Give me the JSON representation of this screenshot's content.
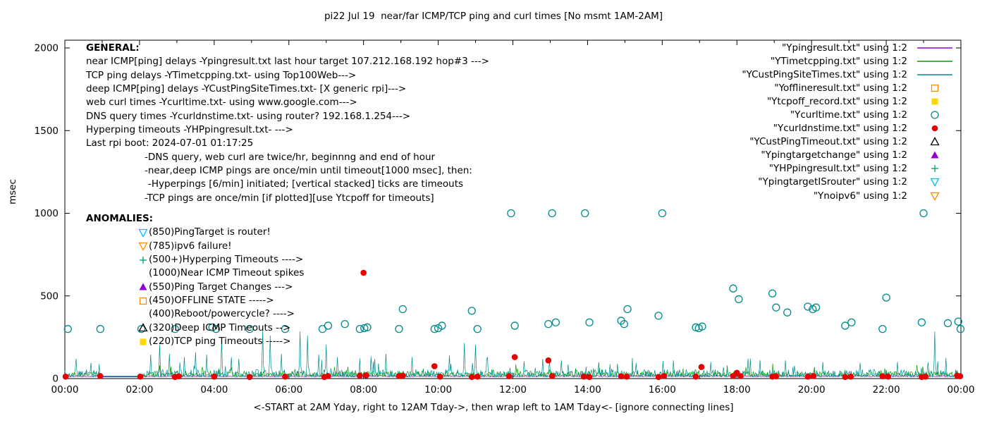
{
  "title": "pi22 Jul 19  near/far ICMP/TCP ping and curl times [No msmt 1AM-2AM]",
  "axes": {
    "ylabel": "msec",
    "xlabel": "<-START at 2AM Yday, right to 12AM Tday->, then wrap left to 1AM Tday<- [ignore connecting lines]",
    "y_ticks": [
      {
        "value": 0,
        "label": "0"
      },
      {
        "value": 500,
        "label": "500"
      },
      {
        "value": 1000,
        "label": "1000"
      },
      {
        "value": 1500,
        "label": "1500"
      },
      {
        "value": 2000,
        "label": "2000"
      }
    ],
    "x_ticks": [
      {
        "hour": 0,
        "label": "00:00"
      },
      {
        "hour": 2,
        "label": "02:00"
      },
      {
        "hour": 4,
        "label": "04:00"
      },
      {
        "hour": 6,
        "label": "06:00"
      },
      {
        "hour": 8,
        "label": "08:00"
      },
      {
        "hour": 10,
        "label": "10:00"
      },
      {
        "hour": 12,
        "label": "12:00"
      },
      {
        "hour": 14,
        "label": "14:00"
      },
      {
        "hour": 16,
        "label": "16:00"
      },
      {
        "hour": 18,
        "label": "18:00"
      },
      {
        "hour": 20,
        "label": "20:00"
      },
      {
        "hour": 22,
        "label": "22:00"
      },
      {
        "hour": 24,
        "label": "00:00"
      }
    ]
  },
  "legend": {
    "entries": [
      {
        "label": "\"Ypingresult.txt\" using 1:2",
        "sample": "line",
        "color": "#9400d3"
      },
      {
        "label": "\"YTimetcpping.txt\" using 1:2",
        "sample": "line",
        "color": "#00a000"
      },
      {
        "label": "\"YCustPingSiteTimes.txt\" using 1:2",
        "sample": "line",
        "color": "#008b8b"
      },
      {
        "label": "\"Yofflineresult.txt\" using 1:2",
        "sample": "square-open",
        "color": "#ff8c00"
      },
      {
        "label": "\"Ytcpoff_record.txt\" using 1:2",
        "sample": "square-filled",
        "color": "#ffd700"
      },
      {
        "label": "\"Ycurltime.txt\" using 1:2",
        "sample": "circle-open",
        "color": "#008b8b"
      },
      {
        "label": "\"Ycurldnstime.txt\" using 1:2",
        "sample": "circle-filled",
        "color": "#e60000"
      },
      {
        "label": "\"YCustPingTimeout.txt\" using 1:2",
        "sample": "triangle-up-open",
        "color": "#000000"
      },
      {
        "label": "\"Ypingtargetchange\" using 1:2",
        "sample": "triangle-up-filled",
        "color": "#9400d3"
      },
      {
        "label": "\"YHPpingresult.txt\" using 1:2",
        "sample": "plus",
        "color": "#009e73"
      },
      {
        "label": "\"YpingtargetISrouter\" using 1:2",
        "sample": "triangle-down-open",
        "color": "#00bfff"
      },
      {
        "label": "\"Ynoipv6\" using 1:2",
        "sample": "triangle-down-open",
        "color": "#ff8c00"
      }
    ]
  },
  "annotations": {
    "general": {
      "heading": "GENERAL:",
      "lines": [
        {
          "text": "near ICMP[ping] delays -Ypingresult.txt last hour target 107.212.168.192 hop#3 --->",
          "indent": 0
        },
        {
          "text": "TCP ping delays -YTimetcpping.txt- using Top100Web--->",
          "indent": 0
        },
        {
          "text": "deep ICMP[ping] delays -YCustPingSiteTimes.txt- [X generic rpi]--->",
          "indent": 0
        },
        {
          "text": "web curl times -Ycurltime.txt- using www.google.com--->",
          "indent": 0
        },
        {
          "text": "DNS query times -Ycurldnstime.txt- using router? 192.168.1.254--->",
          "indent": 0
        },
        {
          "text": "Hyperping timeouts -YHPpingresult.txt- --->",
          "indent": 0
        },
        {
          "text": "Last rpi boot: 2024-07-01 01:17:25",
          "indent": 0
        },
        {
          "text": "-DNS query, web curl are twice/hr, beginnng and end of hour",
          "indent": 1
        },
        {
          "text": "-near,deep ICMP pings are once/min until timeout[1000 msec], then:",
          "indent": 1
        },
        {
          "text": "-Hyperpings [6/min] initiated; [vertical stacked] ticks are timeouts",
          "indent": 2
        },
        {
          "text": "-TCP pings are once/min [if plotted][use Ytcpoff for timeouts]",
          "indent": 1
        }
      ]
    },
    "anomalies": {
      "heading": "ANOMALIES:",
      "items": [
        {
          "marker": "triangle-down-open",
          "color": "#00bfff",
          "text": "(850)PingTarget is router!"
        },
        {
          "marker": "triangle-down-open",
          "color": "#ff8c00",
          "text": "(785)ipv6 failure!"
        },
        {
          "marker": "plus",
          "color": "#009e73",
          "text": "(500+)Hyperping Timeouts ---->"
        },
        {
          "marker": "none",
          "color": "",
          "text": "(1000)Near ICMP Timeout spikes"
        },
        {
          "marker": "triangle-up-filled",
          "color": "#9400d3",
          "text": "(550)Ping Target Changes --->"
        },
        {
          "marker": "square-open",
          "color": "#ff8c00",
          "text": "(450)OFFLINE STATE ----->"
        },
        {
          "marker": "none",
          "color": "",
          "text": "(400)Reboot/powercycle? ---->"
        },
        {
          "marker": "triangle-up-open",
          "color": "#000000",
          "text": "(320)Deep ICMP Timeouts -->"
        },
        {
          "marker": "square-filled",
          "color": "#ffd700",
          "text": "(220)TCP ping Timeouts ----->"
        }
      ]
    }
  },
  "chart_data": {
    "type": "scatter",
    "title": "pi22 Jul 19  near/far ICMP/TCP ping and curl times [No msmt 1AM-2AM]",
    "xlabel": "<-START at 2AM Yday, right to 12AM Tday->, then wrap left to 1AM Tday<- [ignore connecting lines]",
    "ylabel": "msec",
    "x_unit": "hours",
    "xlim": [
      0,
      24
    ],
    "ylim": [
      0,
      2000
    ],
    "grid": false,
    "legend_position": "top-right",
    "measurement_gap_hours": [
      1,
      2
    ],
    "series": [
      {
        "name": "Ypingresult.txt",
        "render": "noisy-line",
        "color": "#9400d3",
        "baseline_msec": 12,
        "noise_amp": 7,
        "burst_amp": 0,
        "seed": 101,
        "spikes": []
      },
      {
        "name": "YTimetcpping.txt",
        "render": "noisy-line",
        "color": "#00a000",
        "baseline_msec": 15,
        "noise_amp": 30,
        "burst_amp": 50,
        "seed": 202,
        "spikes": []
      },
      {
        "name": "YCustPingSiteTimes.txt",
        "render": "noisy-line",
        "color": "#008b8b",
        "baseline_msec": 10,
        "noise_amp": 45,
        "burst_amp": 95,
        "seed": 303,
        "spikes": [
          [
            0.3,
            120
          ],
          [
            0.7,
            95
          ],
          [
            2.3,
            145
          ],
          [
            2.55,
            205
          ],
          [
            2.8,
            150
          ],
          [
            3.2,
            130
          ],
          [
            3.5,
            160
          ],
          [
            3.8,
            145
          ],
          [
            4.2,
            240
          ],
          [
            4.45,
            130
          ],
          [
            4.65,
            120
          ],
          [
            5.3,
            300
          ],
          [
            5.5,
            260
          ],
          [
            5.8,
            150
          ],
          [
            6.3,
            285
          ],
          [
            6.5,
            260
          ],
          [
            6.8,
            145
          ],
          [
            7.0,
            205
          ],
          [
            7.3,
            130
          ],
          [
            8.3,
            120
          ],
          [
            8.6,
            150
          ],
          [
            9.3,
            130
          ],
          [
            10.3,
            140
          ],
          [
            10.7,
            215
          ],
          [
            11.0,
            205
          ],
          [
            11.3,
            120
          ],
          [
            12.3,
            105
          ],
          [
            12.8,
            120
          ],
          [
            13.3,
            110
          ],
          [
            14.3,
            100
          ],
          [
            15.3,
            95
          ],
          [
            16.3,
            110
          ],
          [
            17.3,
            100
          ],
          [
            18.3,
            120
          ],
          [
            19.3,
            110
          ],
          [
            20.3,
            100
          ],
          [
            21.3,
            95
          ],
          [
            22.3,
            100
          ],
          [
            23.3,
            285
          ],
          [
            23.6,
            125
          ]
        ]
      },
      {
        "name": "Ycurltime.txt",
        "render": "points",
        "marker": "circle-open",
        "color": "#008b8b",
        "points": [
          [
            0.08,
            300
          ],
          [
            0.95,
            300
          ],
          [
            2.05,
            300
          ],
          [
            2.95,
            300
          ],
          [
            3.95,
            310
          ],
          [
            4.05,
            300
          ],
          [
            4.95,
            300
          ],
          [
            5.9,
            300
          ],
          [
            6.9,
            300
          ],
          [
            7.05,
            320
          ],
          [
            7.5,
            330
          ],
          [
            7.9,
            300
          ],
          [
            8.02,
            305
          ],
          [
            8.1,
            310
          ],
          [
            8.95,
            300
          ],
          [
            9.05,
            420
          ],
          [
            9.9,
            300
          ],
          [
            10.0,
            305
          ],
          [
            10.1,
            320
          ],
          [
            10.9,
            410
          ],
          [
            11.05,
            300
          ],
          [
            11.95,
            1000
          ],
          [
            12.05,
            320
          ],
          [
            12.95,
            330
          ],
          [
            13.05,
            1000
          ],
          [
            13.15,
            340
          ],
          [
            13.93,
            1000
          ],
          [
            14.05,
            340
          ],
          [
            14.9,
            350
          ],
          [
            14.98,
            330
          ],
          [
            15.07,
            420
          ],
          [
            15.9,
            380
          ],
          [
            16.0,
            1000
          ],
          [
            16.9,
            310
          ],
          [
            16.98,
            305
          ],
          [
            17.07,
            315
          ],
          [
            17.9,
            545
          ],
          [
            18.05,
            480
          ],
          [
            18.95,
            515
          ],
          [
            19.05,
            430
          ],
          [
            19.35,
            400
          ],
          [
            19.9,
            435
          ],
          [
            20.03,
            420
          ],
          [
            20.12,
            430
          ],
          [
            20.9,
            320
          ],
          [
            21.07,
            340
          ],
          [
            21.9,
            300
          ],
          [
            22.0,
            490
          ],
          [
            22.95,
            340
          ],
          [
            23.0,
            1000
          ],
          [
            23.65,
            335
          ],
          [
            23.93,
            345
          ],
          [
            23.99,
            300
          ]
        ]
      },
      {
        "name": "Ycurldnstime.txt",
        "render": "points",
        "marker": "circle-filled",
        "color": "#e60000",
        "points": [
          [
            0.02,
            12
          ],
          [
            0.95,
            15
          ],
          [
            2.02,
            12
          ],
          [
            2.95,
            10
          ],
          [
            3.05,
            14
          ],
          [
            4.0,
            12
          ],
          [
            4.95,
            10
          ],
          [
            5.9,
            12
          ],
          [
            6.95,
            10
          ],
          [
            7.05,
            15
          ],
          [
            7.9,
            18
          ],
          [
            8.0,
            640
          ],
          [
            8.07,
            20
          ],
          [
            8.95,
            15
          ],
          [
            9.05,
            18
          ],
          [
            9.9,
            75
          ],
          [
            10.05,
            12
          ],
          [
            10.9,
            10
          ],
          [
            11.05,
            12
          ],
          [
            11.9,
            14
          ],
          [
            12.05,
            130
          ],
          [
            12.95,
            110
          ],
          [
            13.05,
            15
          ],
          [
            13.9,
            12
          ],
          [
            14.05,
            10
          ],
          [
            14.9,
            14
          ],
          [
            15.05,
            12
          ],
          [
            15.9,
            10
          ],
          [
            16.05,
            15
          ],
          [
            16.9,
            12
          ],
          [
            17.05,
            70
          ],
          [
            17.9,
            16
          ],
          [
            18.0,
            35
          ],
          [
            18.1,
            15
          ],
          [
            18.95,
            12
          ],
          [
            19.05,
            14
          ],
          [
            19.9,
            12
          ],
          [
            20.05,
            15
          ],
          [
            20.9,
            10
          ],
          [
            21.05,
            12
          ],
          [
            21.9,
            14
          ],
          [
            22.05,
            12
          ],
          [
            22.95,
            10
          ],
          [
            23.05,
            12
          ],
          [
            23.9,
            18
          ],
          [
            23.98,
            14
          ]
        ]
      }
    ]
  }
}
